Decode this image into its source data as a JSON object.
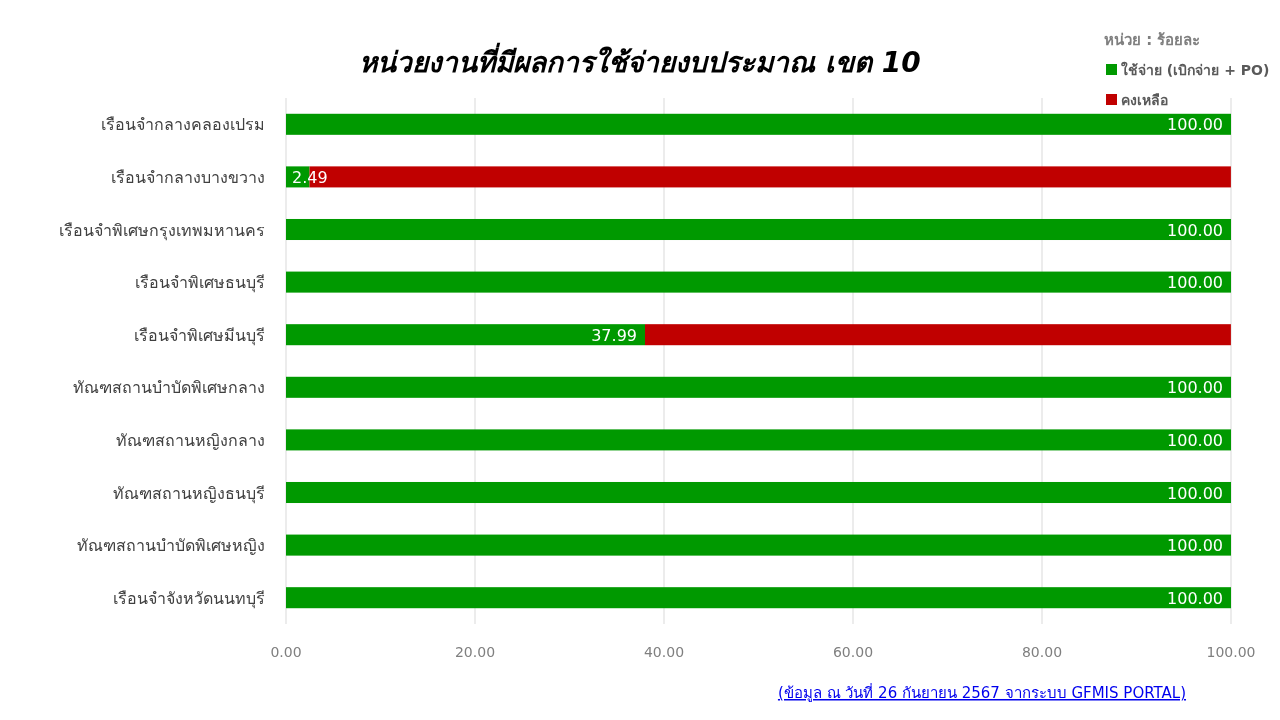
{
  "chart_data": {
    "type": "bar",
    "orientation": "horizontal",
    "stacked": true,
    "title": "หน่วยงานที่มีผลการใช้จ่ายงบประมาณ  เขต 10",
    "categories": [
      "เรือนจำกลางคลองเปรม",
      "เรือนจำกลางบางขวาง",
      "เรือนจำพิเศษกรุงเทพมหานคร",
      "เรือนจำพิเศษธนบุรี",
      "เรือนจำพิเศษมีนบุรี",
      "ทัณฑสถานบำบัดพิเศษกลาง",
      "ทัณฑสถานหญิงกลาง",
      "ทัณฑสถานหญิงธนบุรี",
      "ทัณฑสถานบำบัดพิเศษหญิง",
      "เรือนจำจังหวัดนนทบุรี"
    ],
    "series": [
      {
        "name": "ใช้จ่าย (เบิกจ่าย + PO)",
        "color": "#009900",
        "values": [
          100,
          2.49,
          100,
          100,
          37.99,
          100,
          100,
          100,
          100,
          100
        ],
        "value_labels": [
          "100.00",
          "2.49",
          "100.00",
          "100.00",
          "37.99",
          "100.00",
          "100.00",
          "100.00",
          "100.00",
          "100.00"
        ]
      },
      {
        "name": "คงเหลือ",
        "color": "#c00000",
        "values": [
          null,
          97.5,
          null,
          null,
          62,
          null,
          null,
          null,
          null,
          null
        ]
      }
    ],
    "xlim": [
      0,
      100
    ],
    "xticks": [
      {
        "value": 0,
        "label": "0.00"
      },
      {
        "value": 20,
        "label": "20.00"
      },
      {
        "value": 40,
        "label": "40.00"
      },
      {
        "value": 60,
        "label": "60.00"
      },
      {
        "value": 80,
        "label": "80.00"
      },
      {
        "value": 100,
        "label": "100.00"
      }
    ],
    "grid": "x",
    "legend": "top right",
    "legend_title": "หน่วย : ร้อยละ",
    "annotations": [
      "(ข้อมูล ณ วันที่ 26 กันยายน 2567 จากระบบ GFMIS PORTAL)"
    ]
  }
}
